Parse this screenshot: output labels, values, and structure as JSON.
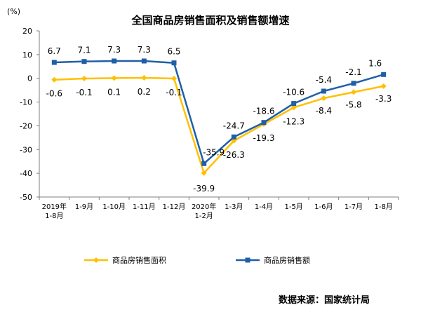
{
  "chart_data": {
    "type": "line",
    "title": "全国商品房销售面积及销售额增速",
    "yunit": "(%)",
    "ylim": [
      -50,
      20
    ],
    "yticks": [
      "20",
      "10",
      "0",
      "-10",
      "-20",
      "-30",
      "-40",
      "-50"
    ],
    "ytick_values": [
      20,
      10,
      0,
      -10,
      -20,
      -30,
      -40,
      -50
    ],
    "categories": [
      [
        "2019年",
        "1-8月"
      ],
      [
        "1-9月"
      ],
      [
        "1-10月"
      ],
      [
        "1-11月"
      ],
      [
        "1-12月"
      ],
      [
        "2020年",
        "1-2月"
      ],
      [
        "1-3月"
      ],
      [
        "1-4月"
      ],
      [
        "1-5月"
      ],
      [
        "1-6月"
      ],
      [
        "1-7月"
      ],
      [
        "1-8月"
      ]
    ],
    "series": [
      {
        "name": "商品房销售面积",
        "color": "#FFC000",
        "marker": "diamond",
        "values": [
          -0.6,
          -0.1,
          0.1,
          0.2,
          -0.1,
          -39.9,
          -26.3,
          -19.3,
          -12.3,
          -8.4,
          -5.8,
          -3.3
        ],
        "labels": [
          "-0.6",
          "-0.1",
          "0.1",
          "0.2",
          "-0.1",
          "-39.9",
          "-26.3",
          "-19.3",
          "-12.3",
          "-8.4",
          "-5.8",
          "-3.3"
        ]
      },
      {
        "name": "商品房销售额",
        "color": "#1F5FA8",
        "marker": "square",
        "values": [
          6.7,
          7.1,
          7.3,
          7.3,
          6.5,
          -35.9,
          -24.7,
          -18.6,
          -10.6,
          -5.4,
          -2.1,
          1.6
        ],
        "labels": [
          "6.7",
          "7.1",
          "7.3",
          "7.3",
          "6.5",
          "-35.9",
          "-24.7",
          "-18.6",
          "-10.6",
          "-5.4",
          "-2.1",
          "1.6"
        ]
      }
    ],
    "legend_position": "bottom",
    "grid": false
  },
  "source": "数据来源：国家统计局"
}
